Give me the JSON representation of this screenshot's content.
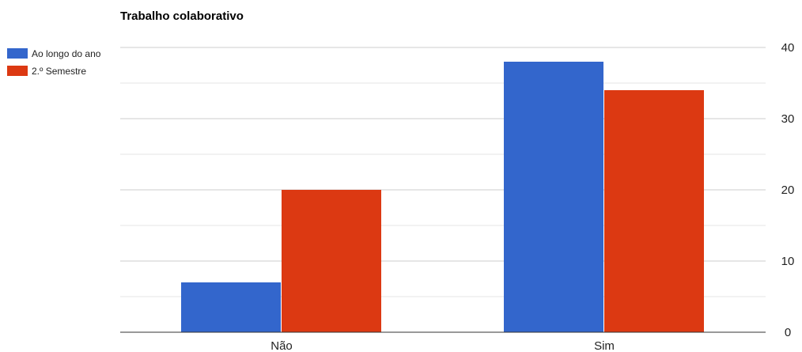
{
  "chart_data": {
    "type": "bar",
    "title": "Trabalho colaborativo",
    "xlabel": "",
    "ylabel": "",
    "categories": [
      "Não",
      "Sim"
    ],
    "series": [
      {
        "name": "Ao longo do ano",
        "values": [
          7,
          38
        ],
        "color": "#3366cc"
      },
      {
        "name": "2.º Semestre",
        "values": [
          20,
          34
        ],
        "color": "#dc3912"
      }
    ],
    "ylim": [
      0,
      40
    ],
    "yticks": [
      0,
      10,
      20,
      30,
      40
    ],
    "y_axis_side": "right",
    "grid": true,
    "legend_position": "left"
  }
}
